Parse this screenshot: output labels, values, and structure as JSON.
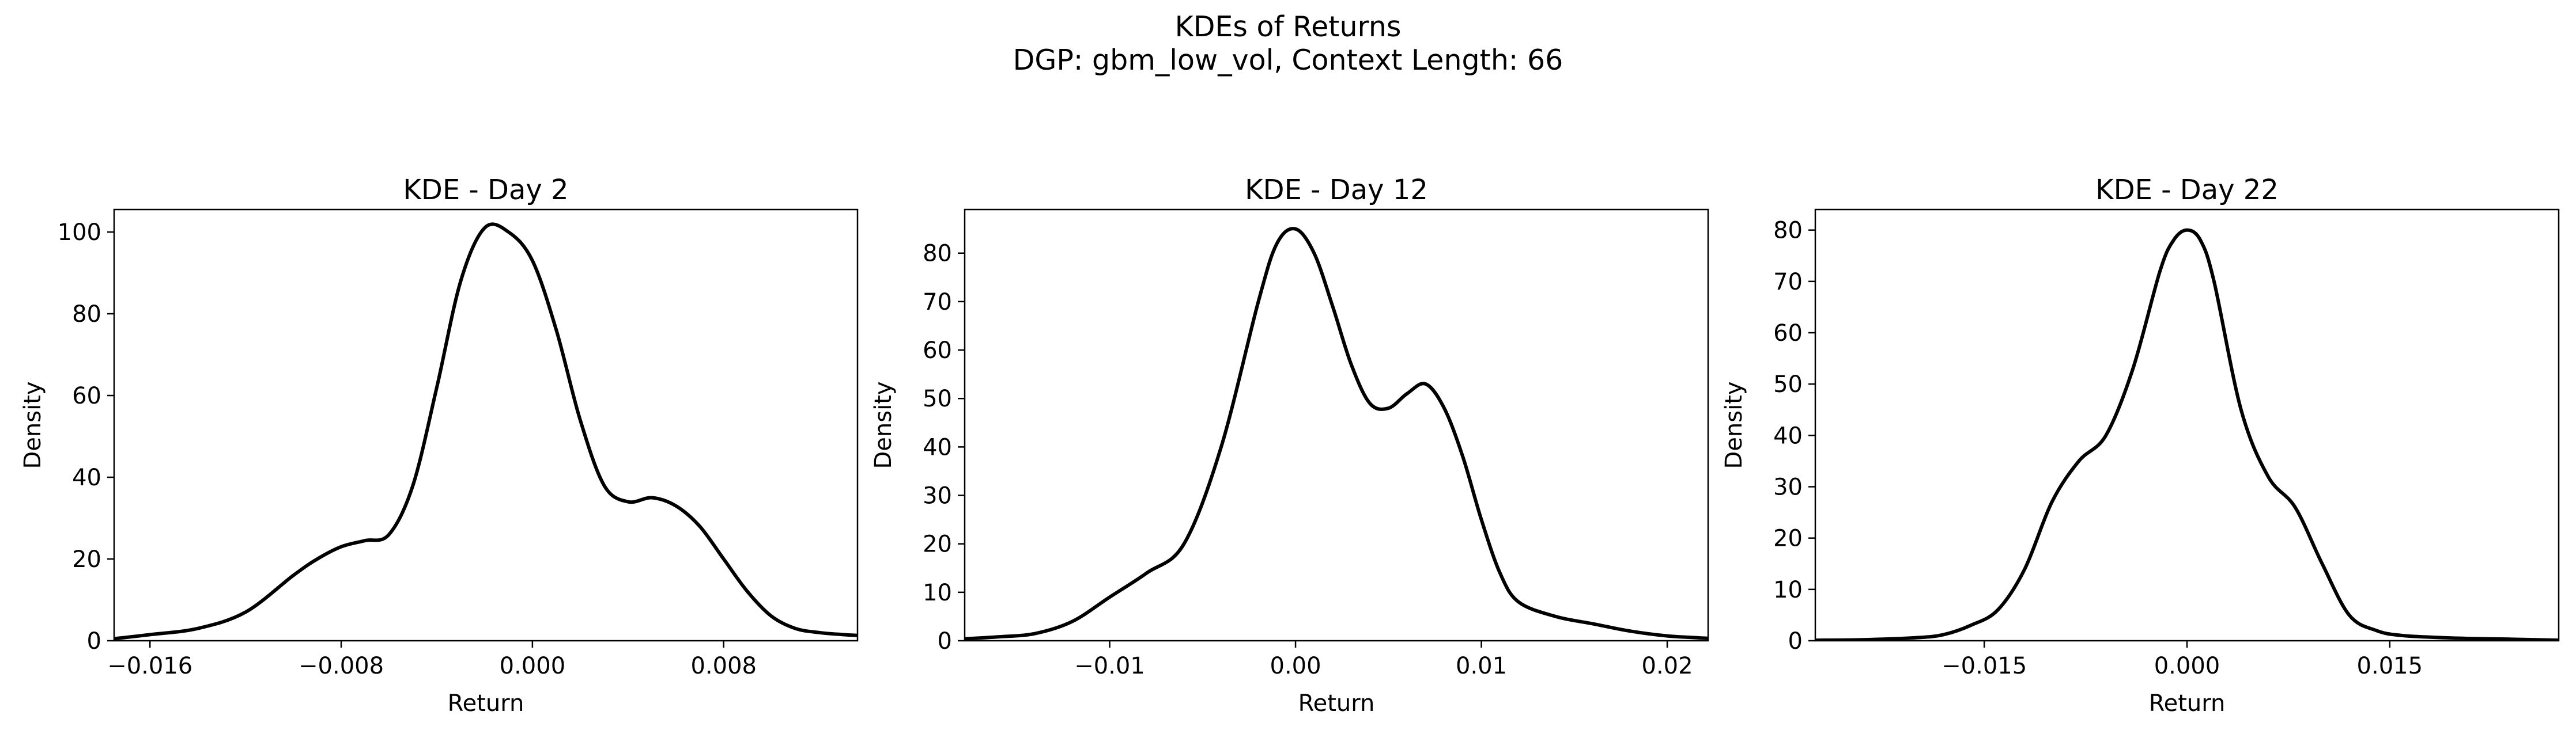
{
  "figure": {
    "suptitle_line1": "KDEs of Returns",
    "suptitle_line2": "DGP: gbm_low_vol, Context Length: 66"
  },
  "chart_data": [
    {
      "type": "line",
      "title": "KDE - Day 2",
      "xlabel": "Return",
      "ylabel": "Density",
      "xlim": [
        -0.0175,
        0.0136
      ],
      "ylim": [
        0,
        105.5
      ],
      "xticks": [
        -0.016,
        -0.008,
        0.0,
        0.008
      ],
      "xtick_labels": [
        "−0.016",
        "−0.008",
        "0.000",
        "0.008"
      ],
      "yticks": [
        0,
        20,
        40,
        60,
        80,
        100
      ],
      "ytick_labels": [
        "0",
        "20",
        "40",
        "60",
        "80",
        "100"
      ],
      "grid": false,
      "series": [
        {
          "color": "#000000",
          "x": [
            -0.0175,
            -0.016,
            -0.014,
            -0.012,
            -0.01,
            -0.009,
            -0.008,
            -0.007,
            -0.006,
            -0.005,
            -0.004,
            -0.003,
            -0.002,
            -0.001,
            0.0,
            0.001,
            0.002,
            0.003,
            0.004,
            0.005,
            0.006,
            0.007,
            0.008,
            0.009,
            0.01,
            0.011,
            0.012,
            0.013,
            0.0136
          ],
          "y": [
            0.5,
            1.5,
            3,
            7,
            16,
            20,
            23,
            24.5,
            26,
            38,
            62,
            88,
            101,
            100,
            93,
            76,
            54,
            38,
            34,
            35,
            33,
            28,
            20,
            12,
            6,
            3,
            2,
            1.5,
            1.3
          ]
        }
      ]
    },
    {
      "type": "line",
      "title": "KDE - Day 12",
      "xlabel": "Return",
      "ylabel": "Density",
      "xlim": [
        -0.0178,
        0.0222
      ],
      "ylim": [
        0,
        89
      ],
      "xticks": [
        -0.01,
        0.0,
        0.01,
        0.02
      ],
      "xtick_labels": [
        "−0.01",
        "0.00",
        "0.01",
        "0.02"
      ],
      "yticks": [
        0,
        10,
        20,
        30,
        40,
        50,
        60,
        70,
        80
      ],
      "ytick_labels": [
        "0",
        "10",
        "20",
        "30",
        "40",
        "50",
        "60",
        "70",
        "80"
      ],
      "grid": false,
      "series": [
        {
          "color": "#000000",
          "x": [
            -0.0178,
            -0.016,
            -0.014,
            -0.012,
            -0.01,
            -0.008,
            -0.006,
            -0.004,
            -0.002,
            -0.001,
            0.0,
            0.001,
            0.002,
            0.003,
            0.004,
            0.005,
            0.006,
            0.007,
            0.008,
            0.009,
            0.01,
            0.011,
            0.012,
            0.014,
            0.016,
            0.018,
            0.02,
            0.0222
          ],
          "y": [
            0.4,
            0.8,
            1.5,
            4,
            9,
            14,
            20,
            40,
            70,
            82,
            85,
            80,
            69,
            57,
            49,
            48,
            51,
            53,
            48,
            38,
            25,
            14,
            8,
            5,
            3.5,
            2,
            1,
            0.5
          ]
        }
      ]
    },
    {
      "type": "line",
      "title": "KDE - Day 22",
      "xlabel": "Return",
      "ylabel": "Density",
      "xlim": [
        -0.0275,
        0.0275
      ],
      "ylim": [
        0,
        84
      ],
      "xticks": [
        -0.015,
        0.0,
        0.015
      ],
      "xtick_labels": [
        "−0.015",
        "0.000",
        "0.015"
      ],
      "yticks": [
        0,
        10,
        20,
        30,
        40,
        50,
        60,
        70,
        80
      ],
      "ytick_labels": [
        "0",
        "10",
        "20",
        "30",
        "40",
        "50",
        "60",
        "70",
        "80"
      ],
      "grid": false,
      "series": [
        {
          "color": "#000000",
          "x": [
            -0.0275,
            -0.024,
            -0.02,
            -0.018,
            -0.016,
            -0.014,
            -0.012,
            -0.01,
            -0.008,
            -0.006,
            -0.004,
            -0.002,
            -0.001,
            0.0,
            0.001,
            0.002,
            0.004,
            0.006,
            0.008,
            0.01,
            0.012,
            0.014,
            0.016,
            0.02,
            0.024,
            0.0275
          ],
          "y": [
            0.1,
            0.2,
            0.6,
            1.2,
            3,
            6,
            14,
            27,
            35,
            40,
            53,
            72,
            78,
            80,
            78,
            70,
            45,
            32,
            26,
            15,
            5,
            2,
            1,
            0.5,
            0.3,
            0.1
          ]
        }
      ]
    }
  ]
}
